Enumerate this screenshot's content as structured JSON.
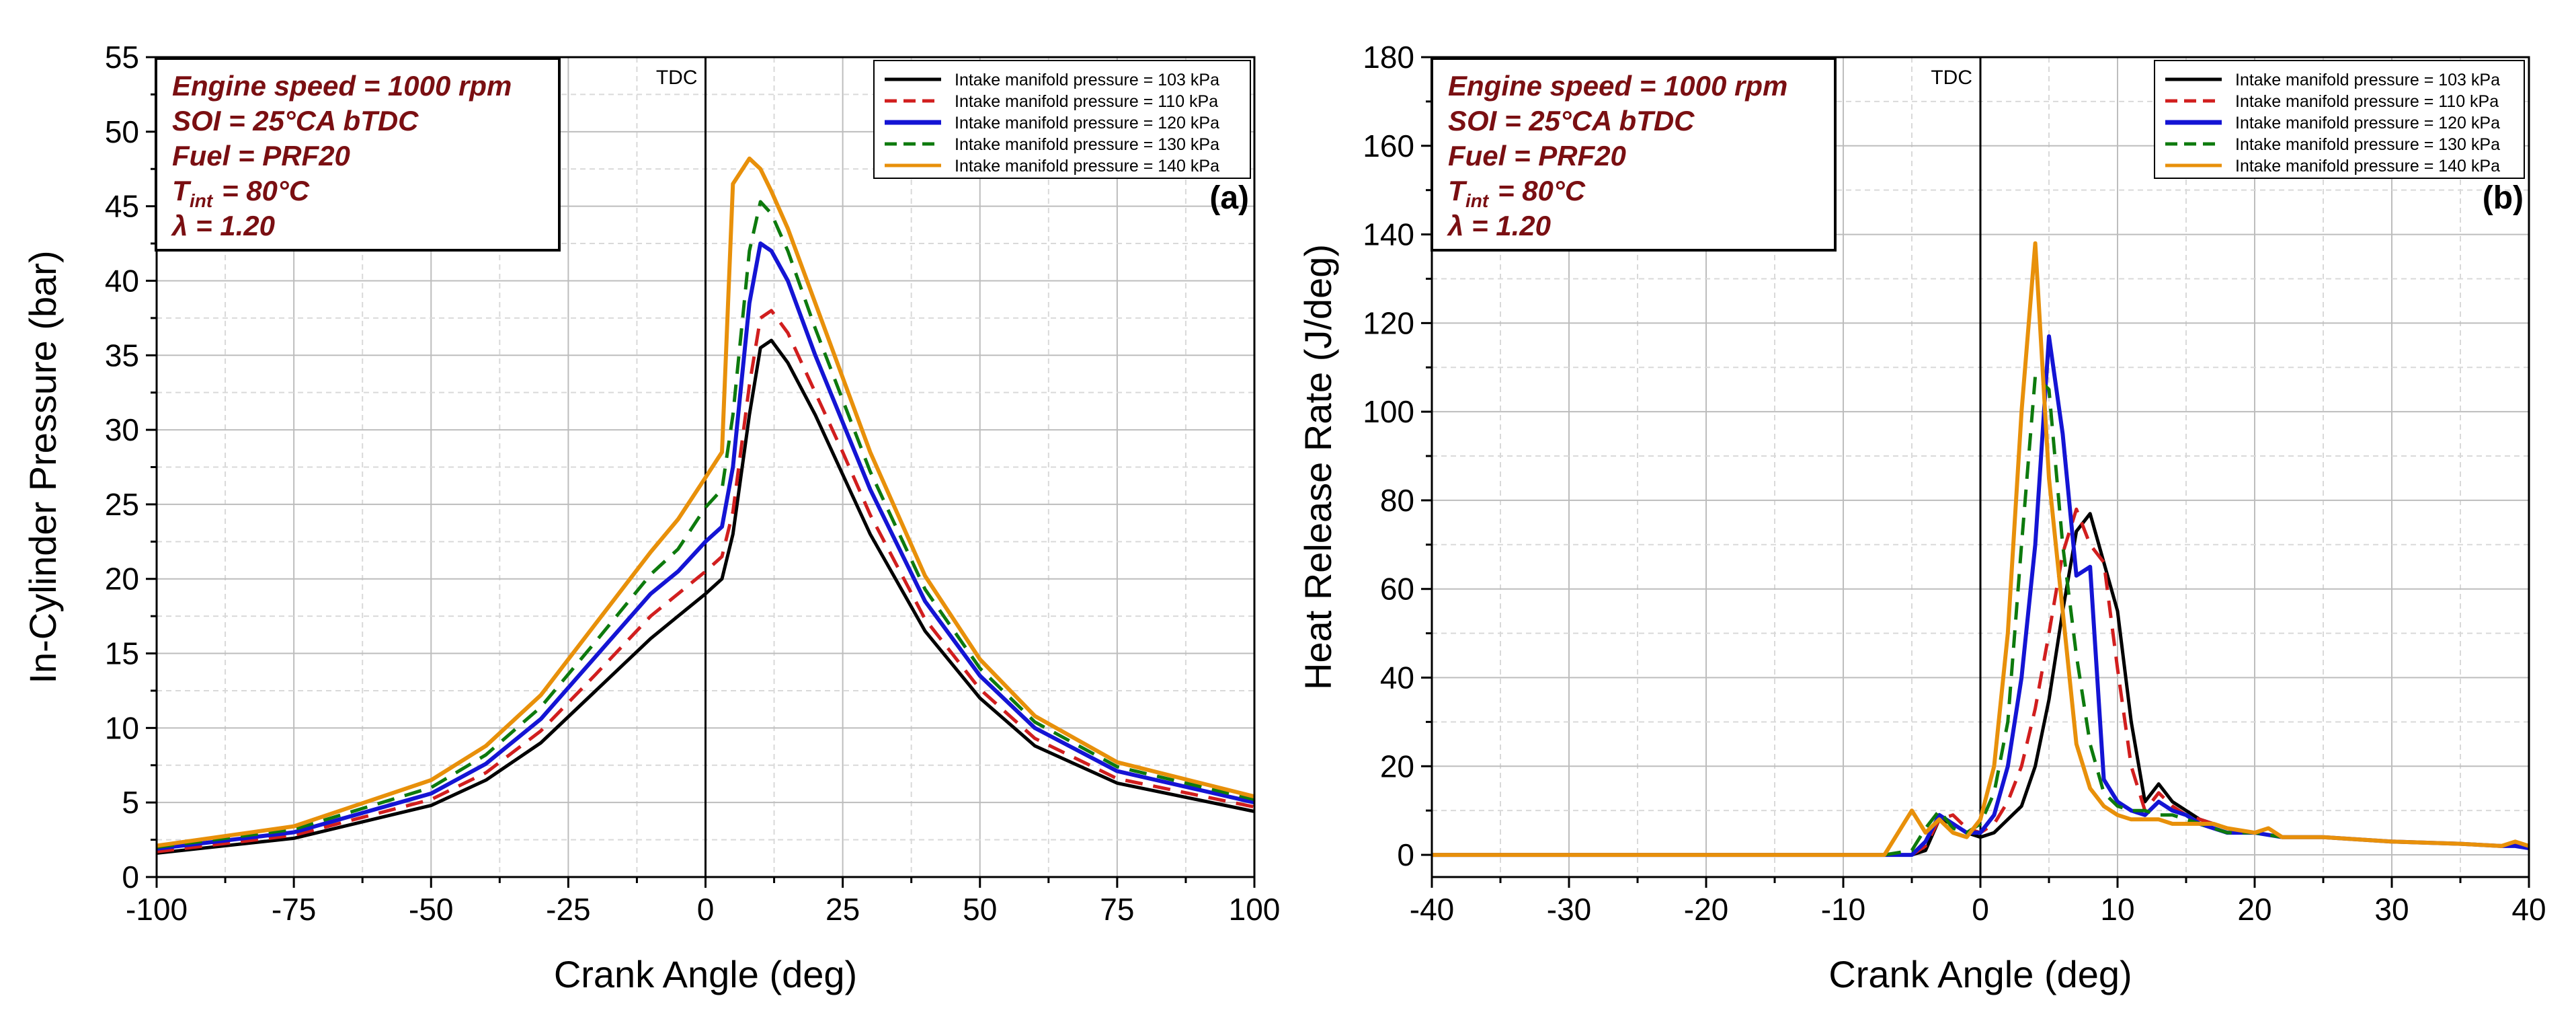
{
  "figure": {
    "common": {
      "annotations": [
        "Engine speed = 1000 rpm",
        "SOI = 25°CA bTDC",
        "Fuel = PRF20",
        "= 80°C",
        "λ = 1.20"
      ],
      "t_int_symbol": "T",
      "t_int_subscript": "int",
      "tdc_label": "TDC"
    }
  },
  "colors": {
    "103": "#000000",
    "110": "#d11e1e",
    "120": "#1414d4",
    "130": "#0d7a0d",
    "140": "#e8900a",
    "annotation": "#7a0f12"
  },
  "chart_data": [
    {
      "type": "line",
      "panel_label": "(a)",
      "title": "",
      "xlabel": "Crank Angle (deg)",
      "ylabel": "In-Cylinder Pressure (bar)",
      "xlim": [
        -100,
        100
      ],
      "ylim": [
        0,
        55
      ],
      "xticks": [
        -100,
        -75,
        -50,
        -25,
        0,
        25,
        50,
        75,
        100
      ],
      "yticks": [
        0,
        5,
        10,
        15,
        20,
        25,
        30,
        35,
        40,
        45,
        50,
        55
      ],
      "xtick_labels": [
        "-100",
        "-75",
        "-50",
        "-25",
        "0",
        "25",
        "50",
        "75",
        "100"
      ],
      "ytick_labels": [
        "0",
        "5",
        "10",
        "15",
        "20",
        "25",
        "30",
        "35",
        "40",
        "45",
        "50",
        "55"
      ],
      "grid": true,
      "legend_position": "top-right",
      "series": [
        {
          "name": "Intake manifold pressure = 103 kPa",
          "key": "103",
          "dash": "solid",
          "x": [
            -100,
            -75,
            -50,
            -40,
            -30,
            -20,
            -10,
            -5,
            0,
            3,
            5,
            8,
            10,
            12,
            15,
            20,
            25,
            30,
            40,
            50,
            60,
            75,
            100
          ],
          "y": [
            1.6,
            2.6,
            4.8,
            6.5,
            9,
            12.5,
            16,
            17.5,
            19,
            20,
            23,
            31,
            35.5,
            36,
            34.5,
            31,
            27,
            23,
            16.5,
            12,
            8.8,
            6.3,
            4.4
          ]
        },
        {
          "name": "Intake manifold pressure = 110 kPa",
          "key": "110",
          "dash": "dashed",
          "x": [
            -100,
            -75,
            -50,
            -40,
            -30,
            -20,
            -10,
            -5,
            0,
            3,
            5,
            8,
            10,
            12,
            15,
            20,
            25,
            30,
            40,
            50,
            60,
            75,
            100
          ],
          "y": [
            1.7,
            2.8,
            5.2,
            7,
            9.8,
            13.6,
            17.5,
            19,
            20.5,
            21.5,
            24.5,
            33,
            37.5,
            38,
            36.5,
            32.5,
            28.5,
            24.3,
            17.3,
            12.6,
            9.3,
            6.6,
            4.7
          ]
        },
        {
          "name": "Intake manifold pressure = 120 kPa",
          "key": "120",
          "dash": "solid",
          "x": [
            -100,
            -75,
            -50,
            -40,
            -30,
            -20,
            -10,
            -5,
            0,
            3,
            5,
            8,
            10,
            12,
            15,
            20,
            25,
            30,
            40,
            50,
            60,
            75,
            100
          ],
          "y": [
            1.9,
            3,
            5.6,
            7.6,
            10.6,
            14.8,
            19,
            20.5,
            22.5,
            23.5,
            27.5,
            38.5,
            42.5,
            42,
            40,
            35,
            30.5,
            26,
            18.5,
            13.5,
            10,
            7.1,
            5
          ]
        },
        {
          "name": "Intake manifold pressure = 130 kPa",
          "key": "130",
          "dash": "dashed",
          "x": [
            -100,
            -75,
            -50,
            -40,
            -30,
            -20,
            -10,
            -5,
            0,
            3,
            5,
            8,
            10,
            12,
            15,
            20,
            25,
            30,
            40,
            50,
            60,
            75,
            100
          ],
          "y": [
            2,
            3.2,
            6,
            8.2,
            11.4,
            15.8,
            20.3,
            22,
            24.8,
            26,
            31,
            42,
            45.3,
            44.5,
            42,
            36.8,
            32,
            27.2,
            19.3,
            14,
            10.4,
            7.4,
            5.2
          ]
        },
        {
          "name": "Intake manifold pressure = 140 kPa",
          "key": "140",
          "dash": "solid",
          "x": [
            -100,
            -75,
            -50,
            -40,
            -30,
            -20,
            -10,
            -5,
            0,
            3,
            5,
            8,
            10,
            12,
            15,
            20,
            25,
            30,
            40,
            50,
            60,
            75,
            100
          ],
          "y": [
            2.1,
            3.4,
            6.5,
            8.8,
            12.2,
            17,
            21.8,
            24,
            26.8,
            28.5,
            46.5,
            48.2,
            47.5,
            46,
            43.5,
            38.5,
            33.5,
            28.5,
            20.2,
            14.6,
            10.8,
            7.7,
            5.4
          ]
        }
      ]
    },
    {
      "type": "line",
      "panel_label": "(b)",
      "title": "",
      "xlabel": "Crank Angle (deg)",
      "ylabel": "Heat Release Rate (J/deg)",
      "xlim": [
        -40,
        40
      ],
      "ylim": [
        -5,
        180
      ],
      "xticks": [
        -40,
        -30,
        -20,
        -10,
        0,
        10,
        20,
        30,
        40
      ],
      "yticks": [
        0,
        20,
        40,
        60,
        80,
        100,
        120,
        140,
        160,
        180
      ],
      "xtick_labels": [
        "-40",
        "-30",
        "-20",
        "-10",
        "0",
        "10",
        "20",
        "30",
        "40"
      ],
      "ytick_labels": [
        "0",
        "20",
        "40",
        "60",
        "80",
        "100",
        "120",
        "140",
        "160",
        "180"
      ],
      "grid": true,
      "legend_position": "top-right",
      "series": [
        {
          "name": "Intake manifold pressure = 103 kPa",
          "key": "103",
          "dash": "solid",
          "x": [
            -40,
            -7,
            -5,
            -4,
            -3,
            -2,
            -1,
            0,
            1,
            2,
            3,
            4,
            5,
            6,
            7,
            8,
            9,
            10,
            11,
            12,
            13,
            14,
            15,
            16,
            17,
            18,
            20,
            22,
            25,
            30,
            35,
            38,
            39,
            40
          ],
          "y": [
            0,
            0,
            0,
            1,
            8,
            7,
            5,
            4,
            5,
            8,
            11,
            20,
            35,
            55,
            73,
            77,
            66,
            55,
            30,
            12,
            16,
            12,
            10,
            8,
            7,
            6,
            5,
            4,
            4,
            3,
            2.5,
            2,
            2,
            1.5
          ]
        },
        {
          "name": "Intake manifold pressure = 110 kPa",
          "key": "110",
          "dash": "dashed",
          "x": [
            -40,
            -7,
            -5,
            -4,
            -3,
            -2,
            -1,
            0,
            1,
            2,
            3,
            4,
            5,
            6,
            7,
            8,
            9,
            10,
            11,
            12,
            13,
            14,
            15,
            16,
            17,
            18,
            20,
            22,
            25,
            30,
            35,
            38,
            39,
            40
          ],
          "y": [
            0,
            0,
            0,
            2,
            8,
            9,
            6,
            5,
            7,
            12,
            20,
            33,
            50,
            68,
            78,
            70,
            66,
            42,
            20,
            10,
            14,
            11,
            9,
            8,
            7,
            6,
            5,
            4,
            4,
            3,
            2.5,
            2,
            2.5,
            2
          ]
        },
        {
          "name": "Intake manifold pressure = 120 kPa",
          "key": "120",
          "dash": "solid",
          "x": [
            -40,
            -7,
            -5,
            -4,
            -3,
            -2,
            -1,
            0,
            1,
            2,
            3,
            4,
            5,
            6,
            7,
            8,
            9,
            10,
            11,
            12,
            13,
            14,
            15,
            16,
            17,
            18,
            20,
            22,
            25,
            30,
            35,
            38,
            39,
            40
          ],
          "y": [
            0,
            0,
            0,
            3,
            9,
            7,
            5,
            5,
            9,
            20,
            40,
            70,
            117,
            95,
            63,
            65,
            17,
            12,
            10,
            9,
            12,
            10,
            9,
            7,
            6,
            5,
            5,
            4,
            4,
            3,
            2.5,
            2,
            2,
            1.5
          ]
        },
        {
          "name": "Intake manifold pressure = 130 kPa",
          "key": "130",
          "dash": "dashed",
          "x": [
            -40,
            -7,
            -5,
            -4,
            -3,
            -2,
            -1,
            0,
            1,
            2,
            3,
            4,
            5,
            6,
            7,
            8,
            9,
            10,
            11,
            12,
            13,
            14,
            15,
            16,
            17,
            18,
            20,
            22,
            25,
            30,
            35,
            38,
            39,
            40
          ],
          "y": [
            0,
            0,
            1,
            6,
            10,
            6,
            5,
            7,
            14,
            30,
            70,
            108,
            105,
            70,
            45,
            25,
            14,
            11,
            10,
            10,
            9,
            9,
            8,
            7,
            6,
            5,
            5,
            4,
            4,
            3,
            2.5,
            2,
            3,
            2
          ]
        },
        {
          "name": "Intake manifold pressure = 140 kPa",
          "key": "140",
          "dash": "solid",
          "x": [
            -40,
            -7,
            -5,
            -4,
            -3,
            -2,
            -1,
            0,
            1,
            2,
            3,
            4,
            5,
            6,
            7,
            8,
            9,
            10,
            11,
            12,
            13,
            14,
            15,
            16,
            17,
            18,
            20,
            21,
            22,
            25,
            30,
            35,
            38,
            39,
            40
          ],
          "y": [
            0,
            0,
            10,
            5,
            8,
            5,
            4,
            8,
            20,
            50,
            100,
            138,
            85,
            55,
            25,
            15,
            11,
            9,
            8,
            8,
            8,
            7,
            7,
            7,
            7,
            6,
            5,
            6,
            4,
            4,
            3,
            2.5,
            2,
            3,
            2
          ]
        }
      ]
    }
  ]
}
